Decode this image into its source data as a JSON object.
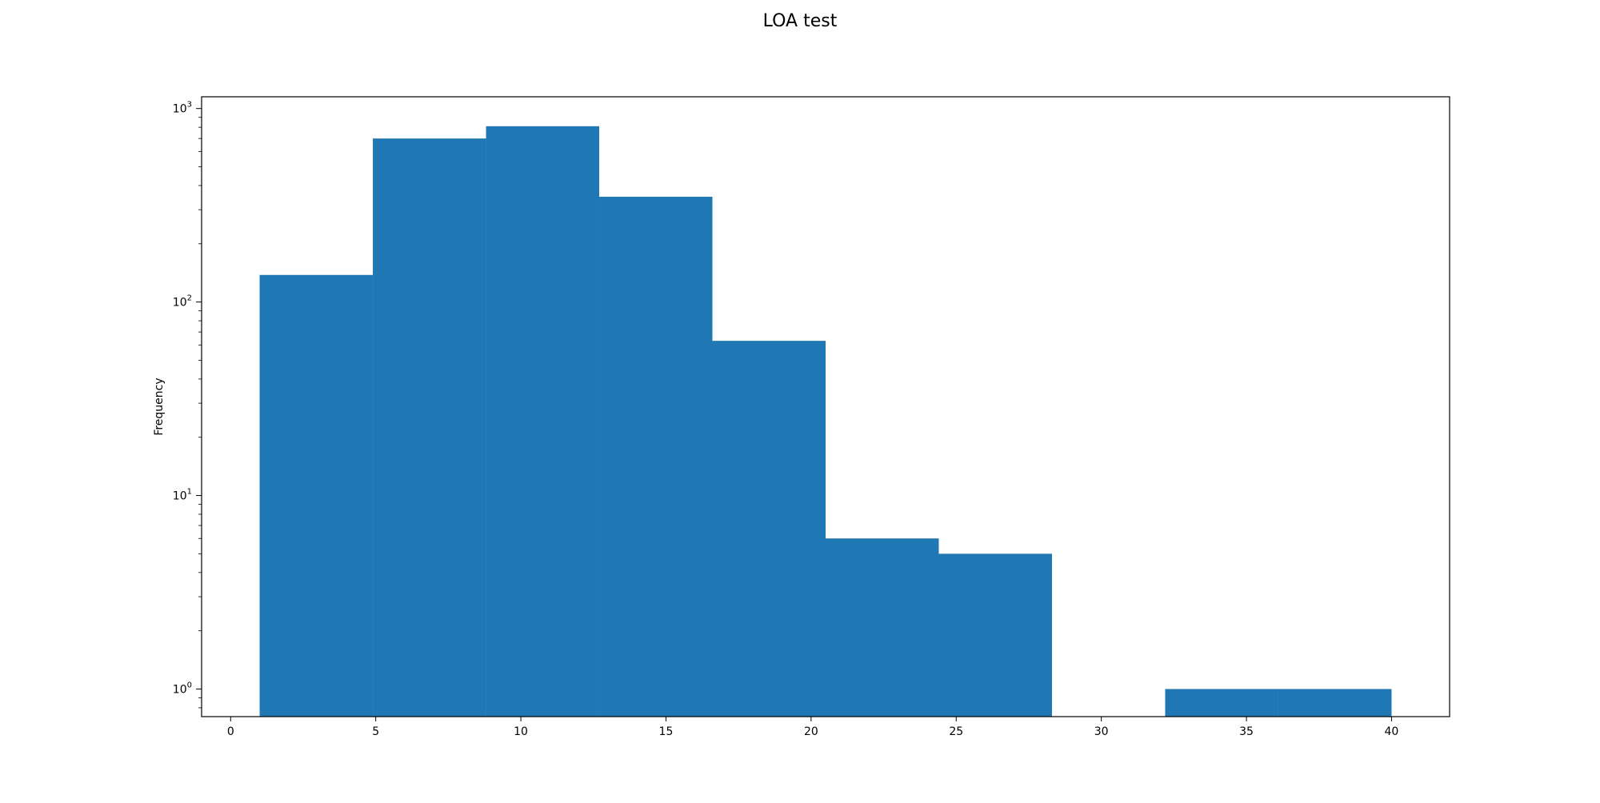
{
  "chart_data": {
    "type": "bar",
    "title": "LOA test",
    "xlabel": "",
    "ylabel": "Frequency",
    "y_scale": "log",
    "xlim": [
      -1,
      42
    ],
    "ylim": [
      0.72,
      1150
    ],
    "x_ticks": [
      0,
      5,
      10,
      15,
      20,
      25,
      30,
      35,
      40
    ],
    "x_tick_labels": [
      "0",
      "5",
      "10",
      "15",
      "20",
      "25",
      "30",
      "35",
      "40"
    ],
    "y_ticks": [
      1,
      10,
      100,
      1000
    ],
    "y_tick_labels": [
      "10^0",
      "10^1",
      "10^2",
      "10^3"
    ],
    "bin_edges": [
      1,
      4.9,
      8.8,
      12.7,
      16.6,
      20.5,
      24.4,
      28.3,
      32.2,
      36.1,
      40
    ],
    "values": [
      138,
      700,
      810,
      350,
      63,
      6,
      5,
      0,
      1,
      1
    ],
    "color": "#1f77b4",
    "grid": false,
    "legend": "none"
  }
}
